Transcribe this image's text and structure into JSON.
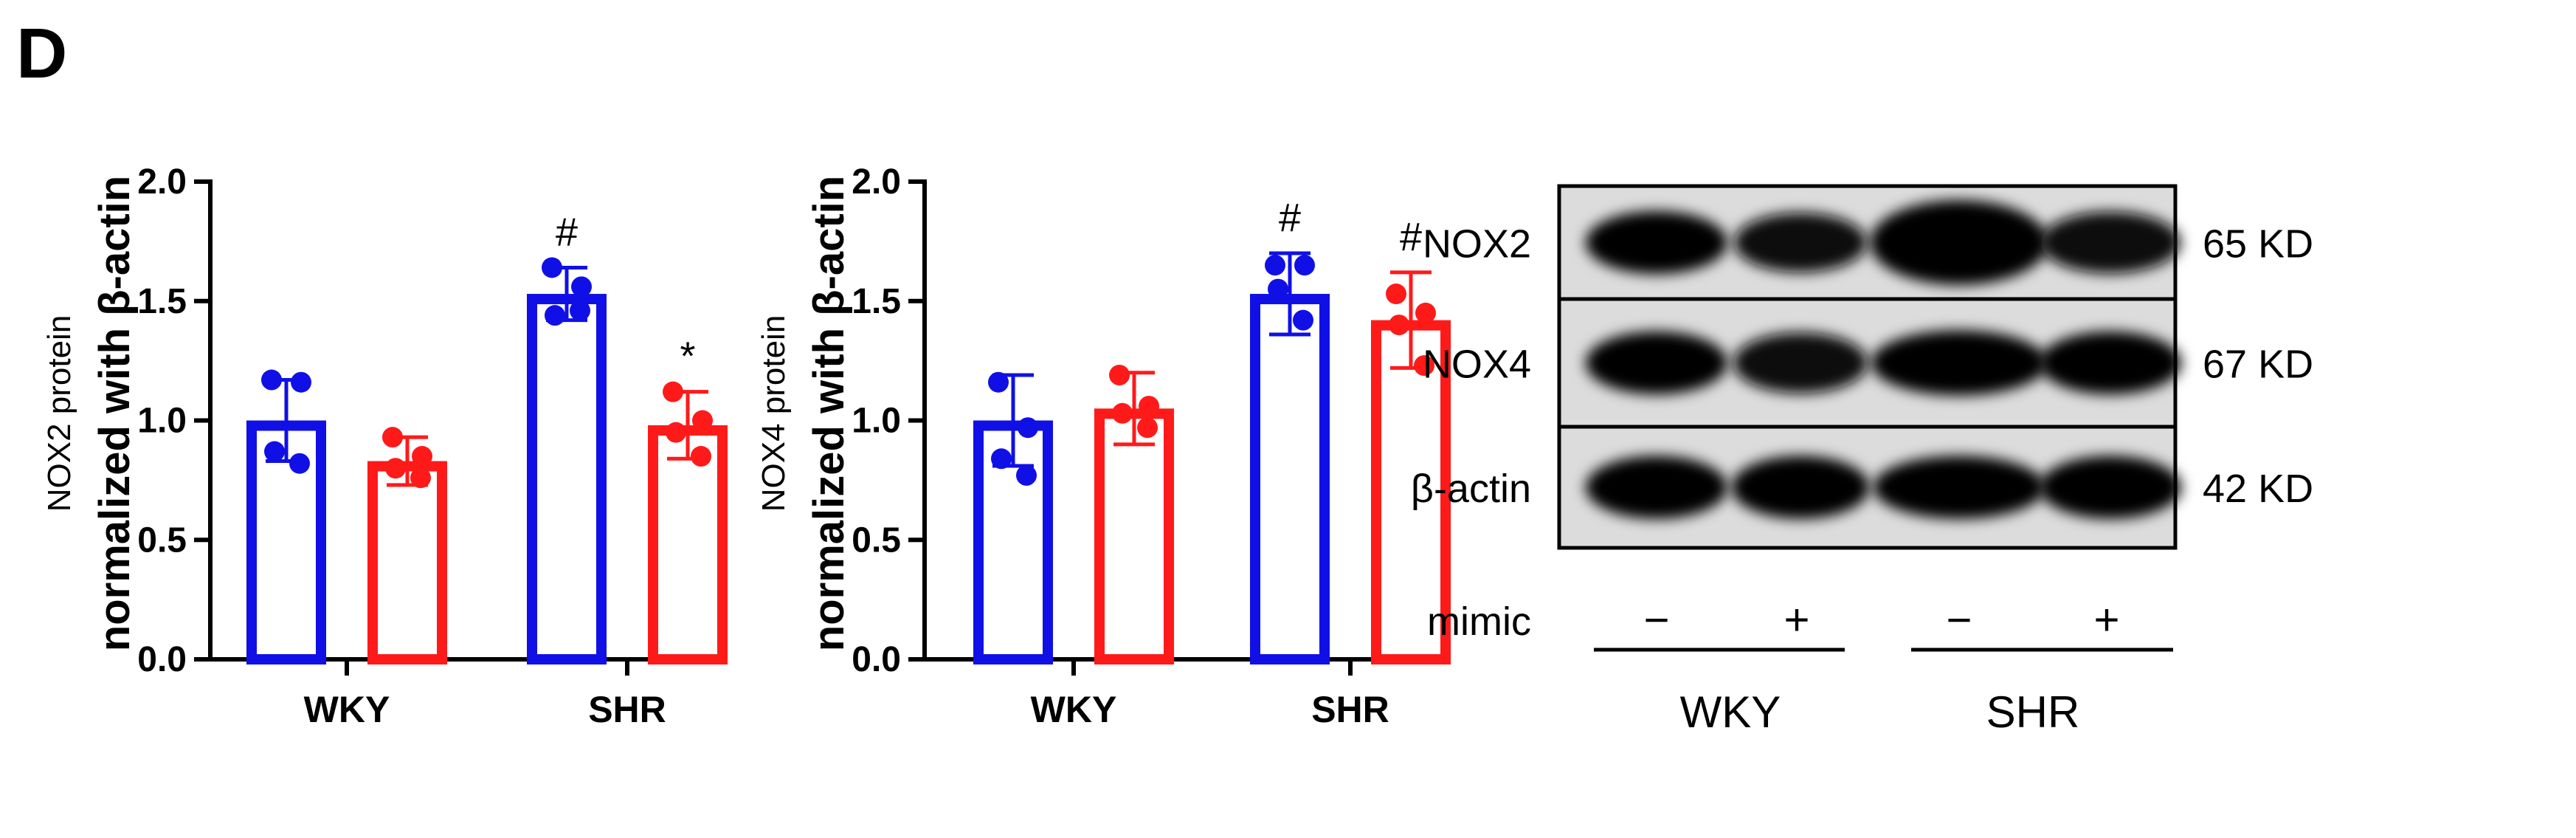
{
  "panel_label": "D",
  "colors": {
    "blue": "#1010e6",
    "red": "#ff1a1a",
    "axis": "#000000"
  },
  "chart_data": [
    {
      "type": "bar",
      "title": "",
      "ylabel_line1": "NOX2 protein",
      "ylabel_line2": "normalized with β-actin",
      "xlabel": "",
      "categories": [
        "WKY",
        "SHR"
      ],
      "ylim": [
        0,
        2.0
      ],
      "yticks": [
        "0.0",
        "0.5",
        "1.0",
        "1.5",
        "2.0"
      ],
      "series": [
        {
          "name": "mimic −",
          "color": "#1010e6",
          "values": [
            1.0,
            1.53
          ],
          "sd": [
            0.17,
            0.11
          ],
          "points": [
            [
              1.17,
              1.16,
              0.87,
              0.82
            ],
            [
              1.64,
              1.56,
              1.44,
              1.46
            ]
          ]
        },
        {
          "name": "mimic +",
          "color": "#ff1a1a",
          "values": [
            0.83,
            0.98
          ],
          "sd": [
            0.1,
            0.14
          ],
          "points": [
            [
              0.93,
              0.85,
              0.8,
              0.76
            ],
            [
              1.12,
              1.0,
              0.95,
              0.85
            ]
          ]
        }
      ],
      "annotations": [
        {
          "category": "SHR",
          "series": 0,
          "text": "#"
        },
        {
          "category": "SHR",
          "series": 1,
          "text": "*"
        }
      ]
    },
    {
      "type": "bar",
      "title": "",
      "ylabel_line1": "NOX4 protein",
      "ylabel_line2": "normalized with β-actin",
      "xlabel": "",
      "categories": [
        "WKY",
        "SHR"
      ],
      "ylim": [
        0,
        2.0
      ],
      "yticks": [
        "0.0",
        "0.5",
        "1.0",
        "1.5",
        "2.0"
      ],
      "series": [
        {
          "name": "mimic −",
          "color": "#1010e6",
          "values": [
            1.0,
            1.53
          ],
          "sd": [
            0.19,
            0.17
          ],
          "points": [
            [
              1.16,
              0.97,
              0.84,
              0.77
            ],
            [
              1.65,
              1.65,
              1.55,
              1.42
            ]
          ]
        },
        {
          "name": "mimic +",
          "color": "#ff1a1a",
          "values": [
            1.05,
            1.42
          ],
          "sd": [
            0.15,
            0.2
          ],
          "points": [
            [
              1.19,
              1.06,
              1.03,
              0.97
            ],
            [
              1.53,
              1.45,
              1.4,
              1.23
            ]
          ]
        }
      ],
      "annotations": [
        {
          "category": "SHR",
          "series": 0,
          "text": "#"
        },
        {
          "category": "SHR",
          "series": 1,
          "text": "#"
        }
      ]
    }
  ],
  "blot": {
    "rows": [
      {
        "label": "NOX2",
        "size": "65 KD",
        "intensity": [
          0.85,
          0.7,
          1.0,
          0.8
        ]
      },
      {
        "label": "NOX4",
        "size": "67 KD",
        "intensity": [
          0.85,
          0.75,
          0.95,
          0.85
        ]
      },
      {
        "label": "β-actin",
        "size": "42 KD",
        "intensity": [
          0.85,
          0.85,
          0.85,
          0.85
        ]
      }
    ],
    "mimic_label": "mimic",
    "lane_signs": [
      "−",
      "+",
      "−",
      "+"
    ],
    "groups": [
      "WKY",
      "SHR"
    ]
  }
}
